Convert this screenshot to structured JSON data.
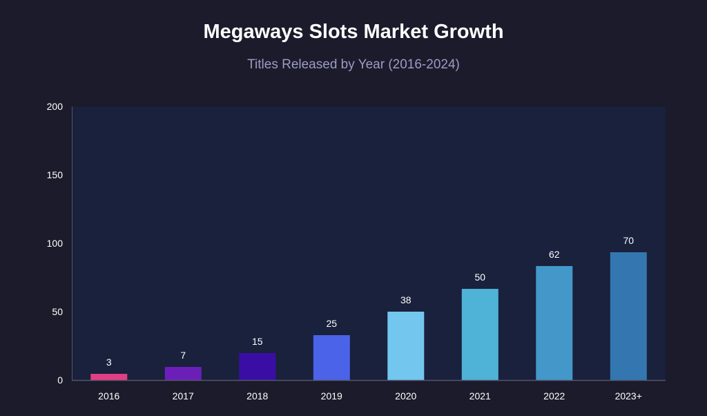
{
  "colors": {
    "page_background": "#1b1b2b",
    "plot_background": "#19213d",
    "axis": "#55556b",
    "title": "#ffffff",
    "subtitle": "#9c9cc4",
    "label": "#ffffff"
  },
  "chart_data": {
    "type": "bar",
    "title": "Megaways Slots Market Growth",
    "subtitle": "Titles Released by Year (2016-2024)",
    "categories": [
      "2016",
      "2017",
      "2018",
      "2019",
      "2020",
      "2021",
      "2022",
      "2023+"
    ],
    "values": [
      3,
      7,
      15,
      25,
      38,
      50,
      62,
      70
    ],
    "bar_heights": [
      9,
      19,
      39,
      65,
      99,
      132,
      165,
      185
    ],
    "data_labels": [
      "3",
      "7",
      "15",
      "25",
      "38",
      "50",
      "62",
      "70"
    ],
    "bar_colors": [
      "#e23e84",
      "#6c1fb8",
      "#3a0ea5",
      "#4a63e8",
      "#73c7ef",
      "#4fb3d8",
      "#4398c9",
      "#3476b0"
    ],
    "ylim": [
      0,
      200
    ],
    "yticks": [
      0,
      50,
      100,
      150,
      200
    ],
    "grid": false,
    "legend": "none"
  }
}
